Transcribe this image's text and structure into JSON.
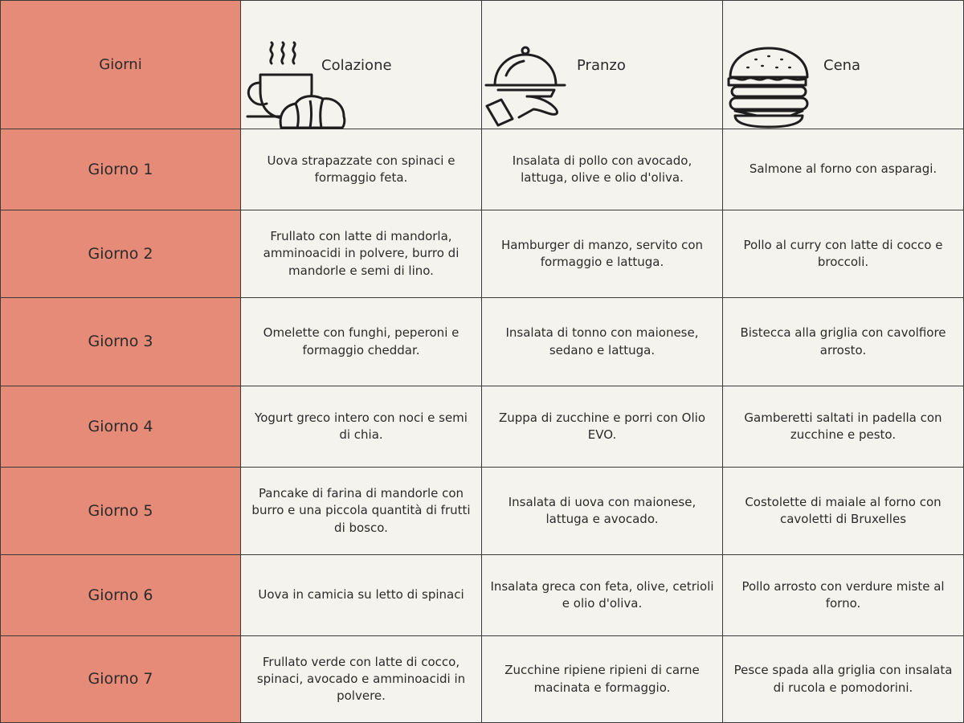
{
  "header": {
    "days": "Giorni",
    "breakfast": "Colazione",
    "lunch": "Pranzo",
    "dinner": "Cena",
    "icons": [
      "coffee-croissant-icon",
      "cloche-serving-icon",
      "burger-icon"
    ]
  },
  "rows": [
    {
      "day": "Giorno 1",
      "colazione": "Uova strapazzate con spinaci e formaggio feta.",
      "pranzo": "Insalata di pollo con avocado, lattuga, olive e olio d'oliva.",
      "cena": "Salmone al forno con asparagi."
    },
    {
      "day": "Giorno 2",
      "colazione": "Frullato con latte di mandorla, amminoacidi in polvere, burro di mandorle e semi di lino.",
      "pranzo": "Hamburger di manzo, servito con formaggio e lattuga.",
      "cena": "Pollo al curry con latte di cocco e broccoli."
    },
    {
      "day": "Giorno 3",
      "colazione": "Omelette con funghi, peperoni e formaggio cheddar.",
      "pranzo": "Insalata di tonno con maionese, sedano e lattuga.",
      "cena": "Bistecca alla griglia con cavolfiore arrosto."
    },
    {
      "day": "Giorno 4",
      "colazione": "Yogurt greco intero con noci e semi di chia.",
      "pranzo": "Zuppa di zucchine e porri con Olio EVO.",
      "cena": "Gamberetti saltati in padella con zucchine e pesto."
    },
    {
      "day": "Giorno 5",
      "colazione": "Pancake di farina di mandorle con burro e una piccola quantità di frutti di bosco.",
      "pranzo": "Insalata di uova con maionese, lattuga e avocado.",
      "cena": "Costolette di maiale al forno con cavoletti di Bruxelles"
    },
    {
      "day": "Giorno 6",
      "colazione": "Uova in camicia su letto di spinaci",
      "pranzo": "Insalata greca con feta, olive, cetrioli e olio d'oliva.",
      "cena": "Pollo arrosto con verdure miste al forno."
    },
    {
      "day": "Giorno 7",
      "colazione": "Frullato verde con latte di cocco, spinaci, avocado e amminoacidi in polvere.",
      "pranzo": "Zucchine ripiene  ripieni di carne macinata e formaggio.",
      "cena": "Pesce spada alla griglia con insalata di rucola e pomodorini."
    }
  ],
  "colors": {
    "day_column": "#e68b78",
    "background": "#f5f3ee",
    "lines": "#3a3a3a"
  }
}
